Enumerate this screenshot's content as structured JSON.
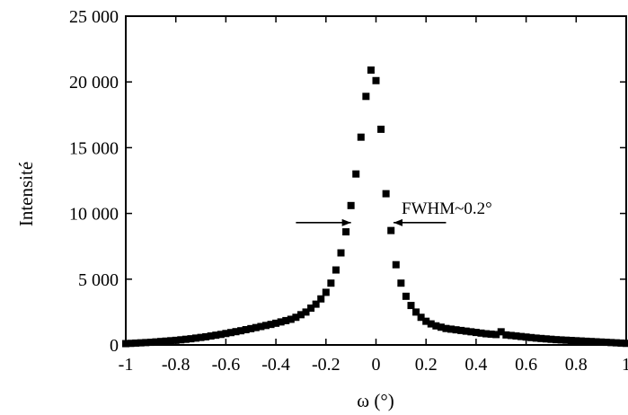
{
  "chart_data": {
    "type": "scatter",
    "title": "",
    "xlabel": "ω (°)",
    "ylabel": "Intensité",
    "xlim": [
      -1,
      1
    ],
    "ylim": [
      0,
      25000
    ],
    "x_ticks": [
      -1,
      -0.8,
      -0.6,
      -0.4,
      -0.2,
      0,
      0.2,
      0.4,
      0.6,
      0.8,
      1
    ],
    "x_tick_labels": [
      "-1",
      "-0.8",
      "-0.6",
      "-0.4",
      "-0.2",
      "0",
      "0.2",
      "0.4",
      "0.6",
      "0.8",
      "1"
    ],
    "y_ticks": [
      0,
      5000,
      10000,
      15000,
      20000,
      25000
    ],
    "y_tick_labels": [
      "0",
      "5 000",
      "10 000",
      "15 000",
      "20 000",
      "25 000"
    ],
    "grid": false,
    "legend": "none",
    "marker": "square",
    "color": "#000000",
    "annotation": {
      "text": "FWHM~0.2°",
      "y": 9300,
      "left_arrow_from": -0.32,
      "left_arrow_to": -0.1,
      "right_arrow_from": 0.28,
      "right_arrow_to": 0.07
    },
    "series": [
      {
        "x": [
          -1.0,
          -0.98,
          -0.96,
          -0.94,
          -0.92,
          -0.9,
          -0.88,
          -0.86,
          -0.84,
          -0.82,
          -0.8,
          -0.78,
          -0.76,
          -0.74,
          -0.72,
          -0.7,
          -0.68,
          -0.66,
          -0.64,
          -0.62,
          -0.6,
          -0.58,
          -0.56,
          -0.54,
          -0.52,
          -0.5,
          -0.48,
          -0.46,
          -0.44,
          -0.42,
          -0.4,
          -0.38,
          -0.36,
          -0.34,
          -0.32,
          -0.3,
          -0.28,
          -0.26,
          -0.24,
          -0.22,
          -0.2,
          -0.18,
          -0.16,
          -0.14,
          -0.12,
          -0.1,
          -0.08,
          -0.06,
          -0.04,
          -0.02,
          0.0,
          0.02,
          0.04,
          0.06,
          0.08,
          0.1,
          0.12,
          0.14,
          0.16,
          0.18,
          0.2,
          0.22,
          0.24,
          0.26,
          0.28,
          0.3,
          0.32,
          0.34,
          0.36,
          0.38,
          0.4,
          0.42,
          0.44,
          0.46,
          0.48,
          0.5,
          0.52,
          0.54,
          0.56,
          0.58,
          0.6,
          0.62,
          0.64,
          0.66,
          0.68,
          0.7,
          0.72,
          0.74,
          0.76,
          0.78,
          0.8,
          0.82,
          0.84,
          0.86,
          0.88,
          0.9,
          0.92,
          0.94,
          0.96,
          0.98,
          1.0
        ],
        "y": [
          100,
          120,
          140,
          160,
          180,
          200,
          230,
          260,
          290,
          320,
          350,
          390,
          430,
          470,
          520,
          570,
          620,
          680,
          740,
          800,
          870,
          940,
          1010,
          1080,
          1160,
          1240,
          1320,
          1400,
          1480,
          1560,
          1650,
          1750,
          1850,
          1950,
          2100,
          2300,
          2500,
          2800,
          3100,
          3500,
          4000,
          4700,
          5700,
          7000,
          8600,
          10600,
          13000,
          15800,
          18900,
          20900,
          20100,
          16400,
          11500,
          8700,
          6100,
          4700,
          3700,
          3000,
          2500,
          2100,
          1800,
          1600,
          1450,
          1350,
          1250,
          1200,
          1150,
          1100,
          1050,
          1000,
          950,
          900,
          850,
          820,
          790,
          1000,
          760,
          720,
          680,
          640,
          600,
          560,
          520,
          490,
          460,
          430,
          400,
          380,
          360,
          340,
          320,
          300,
          280,
          260,
          240,
          220,
          200,
          180,
          160,
          140,
          120
        ]
      }
    ]
  }
}
